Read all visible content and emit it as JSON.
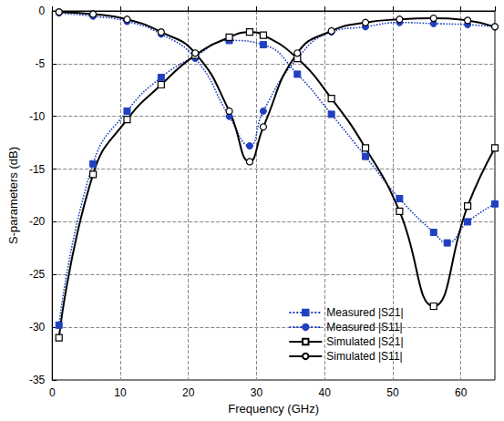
{
  "chart_data": {
    "type": "line",
    "x_label": "Frequency (GHz)",
    "y_label": "S-parameters (dB)",
    "xlim": [
      0,
      65
    ],
    "xticks": [
      0,
      10,
      20,
      30,
      40,
      50,
      60
    ],
    "ylim": [
      -35,
      0
    ],
    "yticks": [
      -35,
      -30,
      -25,
      -20,
      -15,
      -10,
      -5,
      0
    ],
    "grid": true,
    "legend": "lower right",
    "series": [
      {
        "name": "Measured |S21|",
        "color": "#2040c0",
        "marker": "square",
        "line_style": "dotted",
        "x": [
          1,
          6,
          11,
          16,
          21,
          26,
          31,
          36,
          41,
          46,
          51,
          56,
          58,
          61,
          65
        ],
        "values": [
          -29.8,
          -14.5,
          -9.5,
          -6.3,
          -4.3,
          -2.8,
          -3.2,
          -6,
          -9.8,
          -13.8,
          -17.8,
          -21,
          -22,
          -20,
          -18.3
        ]
      },
      {
        "name": "Measured |S11|",
        "color": "#2040c0",
        "marker": "circle",
        "line_style": "dotted",
        "x": [
          1,
          6,
          11,
          16,
          21,
          26,
          29,
          31,
          36,
          41,
          46,
          51,
          56,
          61,
          65
        ],
        "values": [
          -0.2,
          -0.5,
          -1,
          -2.2,
          -4.5,
          -10,
          -12.8,
          -9.5,
          -4.5,
          -2,
          -1.5,
          -1.1,
          -1.2,
          -1.3,
          -1.5
        ]
      },
      {
        "name": "Simulated |S21|",
        "color": "#000000",
        "marker": "open-square",
        "line_style": "solid",
        "x": [
          1,
          6,
          11,
          16,
          21,
          26,
          29,
          31,
          36,
          41,
          46,
          51,
          56,
          61,
          65
        ],
        "values": [
          -31,
          -15.5,
          -10.3,
          -7,
          -4.2,
          -2.5,
          -2,
          -2.3,
          -4.5,
          -8.3,
          -13,
          -19,
          -28,
          -18.5,
          -13
        ]
      },
      {
        "name": "Simulated |S11|",
        "color": "#000000",
        "marker": "open-circle",
        "line_style": "solid",
        "x": [
          1,
          6,
          11,
          16,
          21,
          26,
          29,
          31,
          36,
          41,
          46,
          51,
          56,
          61,
          65
        ],
        "values": [
          -0.1,
          -0.3,
          -0.8,
          -2,
          -4,
          -9.5,
          -14.3,
          -11,
          -4,
          -1.9,
          -1.1,
          -0.8,
          -0.7,
          -0.9,
          -1.5
        ]
      }
    ]
  }
}
